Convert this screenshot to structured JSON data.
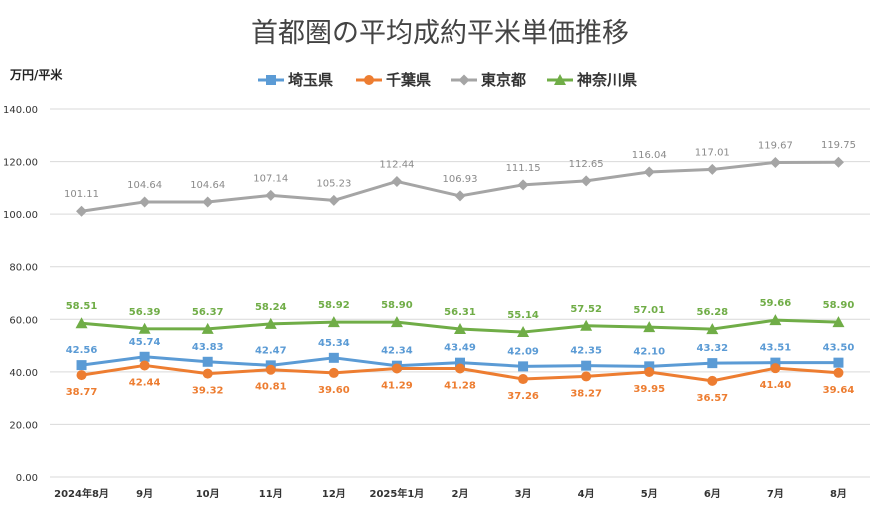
{
  "chart_data": {
    "type": "line",
    "title": "首都圏の平均成約平米単価推移",
    "ylabel": "万円/平米",
    "xlabel": "",
    "ylim": [
      0,
      140
    ],
    "yticks": [
      "0.00",
      "20.00",
      "40.00",
      "60.00",
      "80.00",
      "100.00",
      "120.00",
      "140.00"
    ],
    "grid": true,
    "legend_position": "top",
    "categories": [
      "2024年8月",
      "9月",
      "10月",
      "11月",
      "12月",
      "2025年1月",
      "2月",
      "3月",
      "4月",
      "5月",
      "6月",
      "7月",
      "8月"
    ],
    "series": [
      {
        "name": "埼玉県",
        "color": "#5b9bd5",
        "marker": "square",
        "label_color": "#5b9bd5",
        "values": [
          42.56,
          45.74,
          43.83,
          42.47,
          45.34,
          42.34,
          43.49,
          42.09,
          42.35,
          42.1,
          43.32,
          43.51,
          43.5
        ],
        "labels": [
          "42.56",
          "45.74",
          "43.83",
          "42.47",
          "45.34",
          "42.34",
          "43.49",
          "42.09",
          "42.35",
          "42.10",
          "43.32",
          "43.51",
          "43.50"
        ]
      },
      {
        "name": "千葉県",
        "color": "#ed7d31",
        "marker": "circle",
        "label_color": "#ed7d31",
        "values": [
          38.77,
          42.44,
          39.32,
          40.81,
          39.6,
          41.29,
          41.28,
          37.26,
          38.27,
          39.95,
          36.57,
          41.4,
          39.64
        ],
        "labels": [
          "38.77",
          "42.44",
          "39.32",
          "40.81",
          "39.60",
          "41.29",
          "41.28",
          "37.26",
          "38.27",
          "39.95",
          "36.57",
          "41.40",
          "39.64"
        ]
      },
      {
        "name": "東京都",
        "color": "#a5a5a5",
        "marker": "diamond",
        "label_color": "#8a8a8a",
        "values": [
          101.11,
          104.64,
          104.64,
          107.14,
          105.23,
          112.44,
          106.93,
          111.15,
          112.65,
          116.04,
          117.01,
          119.67,
          119.75
        ],
        "labels": [
          "101.11",
          "104.64",
          "104.64",
          "107.14",
          "105.23",
          "112.44",
          "106.93",
          "111.15",
          "112.65",
          "116.04",
          "117.01",
          "119.67",
          "119.75"
        ]
      },
      {
        "name": "神奈川県",
        "color": "#70ad47",
        "marker": "triangle",
        "label_color": "#70ad47",
        "values": [
          58.51,
          56.39,
          56.37,
          58.24,
          58.92,
          58.9,
          56.31,
          55.14,
          57.52,
          57.01,
          56.28,
          59.66,
          58.9
        ],
        "labels": [
          "58.51",
          "56.39",
          "56.37",
          "58.24",
          "58.92",
          "58.90",
          "56.31",
          "55.14",
          "57.52",
          "57.01",
          "56.28",
          "59.66",
          "58.90"
        ]
      }
    ]
  }
}
